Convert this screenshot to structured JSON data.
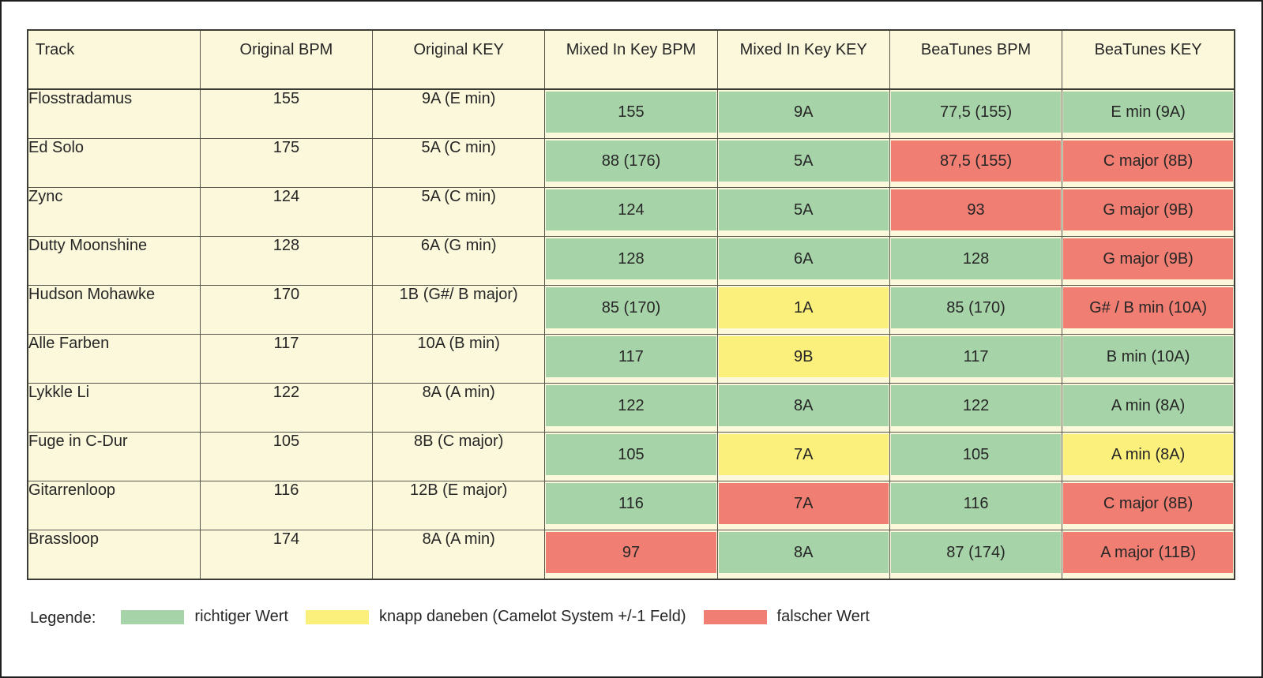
{
  "table": {
    "columns": [
      "Track",
      "Original BPM",
      "Original KEY",
      "Mixed In Key BPM",
      "Mixed In Key KEY",
      "BeaTunes BPM",
      "BeaTunes KEY"
    ],
    "rows": [
      {
        "track": "Flosstradamus",
        "original_bpm": "155",
        "original_key": "9A (E min)",
        "mixed_in_key_bpm": {
          "value": "155",
          "status": "correct"
        },
        "mixed_in_key_key": {
          "value": "9A",
          "status": "correct"
        },
        "beatunes_bpm": {
          "value": "77,5 (155)",
          "status": "correct"
        },
        "beatunes_key": {
          "value": "E min (9A)",
          "status": "correct"
        }
      },
      {
        "track": "Ed Solo",
        "original_bpm": "175",
        "original_key": "5A (C min)",
        "mixed_in_key_bpm": {
          "value": "88 (176)",
          "status": "correct"
        },
        "mixed_in_key_key": {
          "value": "5A",
          "status": "correct"
        },
        "beatunes_bpm": {
          "value": "87,5 (155)",
          "status": "wrong"
        },
        "beatunes_key": {
          "value": "C major (8B)",
          "status": "wrong"
        }
      },
      {
        "track": "Zync",
        "original_bpm": "124",
        "original_key": "5A (C min)",
        "mixed_in_key_bpm": {
          "value": "124",
          "status": "correct"
        },
        "mixed_in_key_key": {
          "value": "5A",
          "status": "correct"
        },
        "beatunes_bpm": {
          "value": "93",
          "status": "wrong"
        },
        "beatunes_key": {
          "value": "G major (9B)",
          "status": "wrong"
        }
      },
      {
        "track": "Dutty Moonshine",
        "original_bpm": "128",
        "original_key": "6A (G min)",
        "mixed_in_key_bpm": {
          "value": "128",
          "status": "correct"
        },
        "mixed_in_key_key": {
          "value": "6A",
          "status": "correct"
        },
        "beatunes_bpm": {
          "value": "128",
          "status": "correct"
        },
        "beatunes_key": {
          "value": "G major (9B)",
          "status": "wrong"
        }
      },
      {
        "track": "Hudson Mohawke",
        "original_bpm": "170",
        "original_key": "1B (G#/ B major)",
        "mixed_in_key_bpm": {
          "value": "85 (170)",
          "status": "correct"
        },
        "mixed_in_key_key": {
          "value": "1A",
          "status": "close"
        },
        "beatunes_bpm": {
          "value": "85 (170)",
          "status": "correct"
        },
        "beatunes_key": {
          "value": "G# / B min (10A)",
          "status": "wrong"
        }
      },
      {
        "track": "Alle Farben",
        "original_bpm": "117",
        "original_key": "10A (B min)",
        "mixed_in_key_bpm": {
          "value": "117",
          "status": "correct"
        },
        "mixed_in_key_key": {
          "value": "9B",
          "status": "close"
        },
        "beatunes_bpm": {
          "value": "117",
          "status": "correct"
        },
        "beatunes_key": {
          "value": "B  min (10A)",
          "status": "correct"
        }
      },
      {
        "track": "Lykkle Li",
        "original_bpm": "122",
        "original_key": "8A (A min)",
        "mixed_in_key_bpm": {
          "value": "122",
          "status": "correct"
        },
        "mixed_in_key_key": {
          "value": "8A",
          "status": "correct"
        },
        "beatunes_bpm": {
          "value": "122",
          "status": "correct"
        },
        "beatunes_key": {
          "value": "A min (8A)",
          "status": "correct"
        }
      },
      {
        "track": "Fuge in C-Dur",
        "original_bpm": "105",
        "original_key": "8B (C major)",
        "mixed_in_key_bpm": {
          "value": "105",
          "status": "correct"
        },
        "mixed_in_key_key": {
          "value": "7A",
          "status": "close"
        },
        "beatunes_bpm": {
          "value": "105",
          "status": "correct"
        },
        "beatunes_key": {
          "value": "A min (8A)",
          "status": "close"
        }
      },
      {
        "track": "Gitarrenloop",
        "original_bpm": "116",
        "original_key": "12B (E major)",
        "mixed_in_key_bpm": {
          "value": "116",
          "status": "correct"
        },
        "mixed_in_key_key": {
          "value": "7A",
          "status": "wrong"
        },
        "beatunes_bpm": {
          "value": "116",
          "status": "correct"
        },
        "beatunes_key": {
          "value": "C major (8B)",
          "status": "wrong"
        }
      },
      {
        "track": "Brassloop",
        "original_bpm": "174",
        "original_key": "8A (A min)",
        "mixed_in_key_bpm": {
          "value": "97",
          "status": "wrong"
        },
        "mixed_in_key_key": {
          "value": "8A",
          "status": "correct"
        },
        "beatunes_bpm": {
          "value": "87 (174)",
          "status": "correct"
        },
        "beatunes_key": {
          "value": "A major (11B)",
          "status": "wrong"
        }
      }
    ]
  },
  "legend": {
    "title": "Legende:",
    "items": [
      {
        "label": "richtiger Wert",
        "status": "correct"
      },
      {
        "label": "knapp daneben (Camelot System +/-1 Feld)",
        "status": "close"
      },
      {
        "label": "falscher Wert",
        "status": "wrong"
      }
    ]
  },
  "colors": {
    "correct": "#a7d3a9",
    "close": "#fcf07d",
    "wrong": "#f07e72",
    "cell_background": "#fcf8dc",
    "grid_line": "#57574d",
    "text": "#262626"
  }
}
